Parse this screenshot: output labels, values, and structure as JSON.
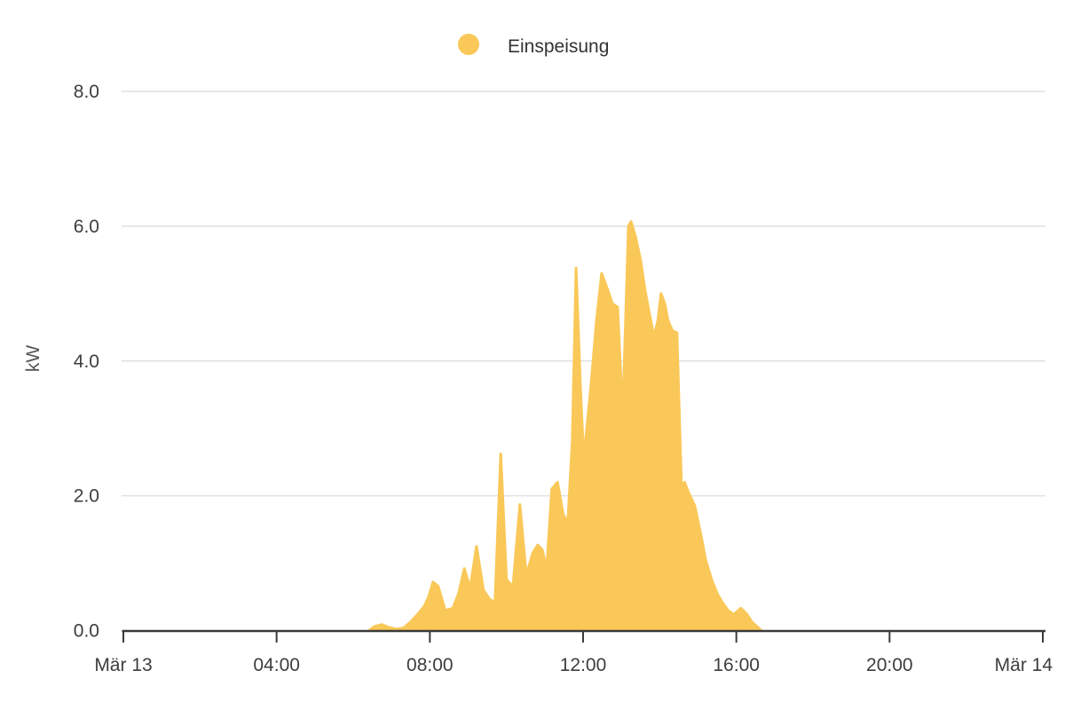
{
  "legend": {
    "position": "top",
    "items": [
      {
        "label": "Einspeisung",
        "marker": "circle",
        "color": "#FAC858"
      }
    ]
  },
  "y_axis": {
    "label": "kW",
    "tick_labels": [
      "0.0",
      "2.0",
      "4.0",
      "6.0",
      "8.0"
    ],
    "tick_values": [
      0,
      2,
      4,
      6,
      8
    ],
    "min": 0,
    "max": 8
  },
  "x_axis": {
    "ticks": [
      {
        "label": "Mär 13",
        "hours": 0
      },
      {
        "label": "04:00",
        "hours": 4
      },
      {
        "label": "08:00",
        "hours": 8
      },
      {
        "label": "12:00",
        "hours": 12
      },
      {
        "label": "16:00",
        "hours": 16
      },
      {
        "label": "20:00",
        "hours": 20
      },
      {
        "label": "Mär 14",
        "hours": 24
      }
    ],
    "range_hours": [
      0,
      24
    ]
  },
  "colors": {
    "area_fill": "#FAC858",
    "grid_line": "#E0E0E0",
    "axis_line": "#3A3A3A",
    "axis_text": "#3D3D3D",
    "legend_text": "#333333",
    "unit_text": "#555555",
    "background": "#FFFFFF"
  },
  "chart_data": {
    "type": "area",
    "title": "",
    "xlabel": "",
    "ylabel": "kW",
    "x_start_label": "Mär 13",
    "x_end_label": "Mär 14",
    "ylim": [
      0,
      8
    ],
    "grid": true,
    "legend_position": "top",
    "interpolation": "linear",
    "series": [
      {
        "name": "Einspeisung",
        "color": "#FAC858",
        "unit": "kW",
        "points": [
          [
            "06:25",
            0
          ],
          [
            "06:33",
            0.06
          ],
          [
            "06:45",
            0.09
          ],
          [
            "06:55",
            0.05
          ],
          [
            "07:08",
            0.02
          ],
          [
            "07:19",
            0.04
          ],
          [
            "07:29",
            0.12
          ],
          [
            "07:40",
            0.23
          ],
          [
            "07:51",
            0.36
          ],
          [
            "07:58",
            0.5
          ],
          [
            "08:05",
            0.72
          ],
          [
            "08:13",
            0.66
          ],
          [
            "08:24",
            0.3
          ],
          [
            "08:36",
            0.33
          ],
          [
            "08:45",
            0.55
          ],
          [
            "08:54",
            0.92
          ],
          [
            "09:03",
            0.63
          ],
          [
            "09:13",
            1.25
          ],
          [
            "09:24",
            0.6
          ],
          [
            "09:34",
            0.46
          ],
          [
            "09:42",
            0.42
          ],
          [
            "09:51",
            2.62
          ],
          [
            "10:00",
            0.76
          ],
          [
            "10:10",
            0.65
          ],
          [
            "10:21",
            1.87
          ],
          [
            "10:31",
            0.82
          ],
          [
            "10:41",
            1.15
          ],
          [
            "10:49",
            1.27
          ],
          [
            "10:56",
            1.2
          ],
          [
            "11:03",
            0.92
          ],
          [
            "11:11",
            2.1
          ],
          [
            "11:20",
            2.2
          ],
          [
            "11:29",
            1.72
          ],
          [
            "11:36",
            1.6
          ],
          [
            "11:43",
            2.8
          ],
          [
            "11:49",
            5.38
          ],
          [
            "11:56",
            3.6
          ],
          [
            "12:01",
            2.55
          ],
          [
            "12:12",
            3.6
          ],
          [
            "12:21",
            4.6
          ],
          [
            "12:29",
            5.3
          ],
          [
            "12:37",
            5.1
          ],
          [
            "12:46",
            4.85
          ],
          [
            "12:54",
            4.8
          ],
          [
            "13:02",
            3.2
          ],
          [
            "13:11",
            6.0
          ],
          [
            "13:15",
            6.07
          ],
          [
            "13:22",
            5.85
          ],
          [
            "13:30",
            5.5
          ],
          [
            "13:37",
            5.05
          ],
          [
            "13:46",
            4.6
          ],
          [
            "13:51",
            4.36
          ],
          [
            "13:57",
            4.6
          ],
          [
            "14:02",
            5.0
          ],
          [
            "14:08",
            4.85
          ],
          [
            "14:13",
            4.6
          ],
          [
            "14:20",
            4.45
          ],
          [
            "14:27",
            4.42
          ],
          [
            "14:34",
            2.15
          ],
          [
            "14:39",
            2.2
          ],
          [
            "14:45",
            2.05
          ],
          [
            "14:55",
            1.85
          ],
          [
            "15:05",
            1.4
          ],
          [
            "15:12",
            1.05
          ],
          [
            "15:22",
            0.74
          ],
          [
            "15:30",
            0.55
          ],
          [
            "15:38",
            0.42
          ],
          [
            "15:47",
            0.3
          ],
          [
            "15:56",
            0.24
          ],
          [
            "16:07",
            0.33
          ],
          [
            "16:16",
            0.25
          ],
          [
            "16:25",
            0.12
          ],
          [
            "16:35",
            0.04
          ],
          [
            "16:39",
            0
          ]
        ]
      }
    ]
  }
}
